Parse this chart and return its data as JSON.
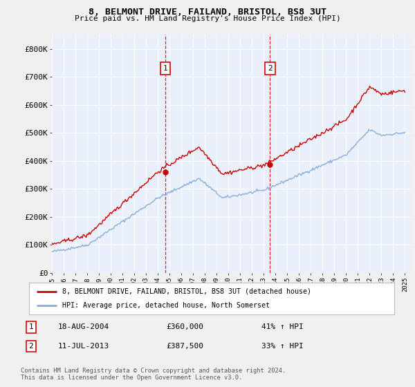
{
  "title": "8, BELMONT DRIVE, FAILAND, BRISTOL, BS8 3UT",
  "subtitle": "Price paid vs. HM Land Registry's House Price Index (HPI)",
  "fig_bg_color": "#f0f0f0",
  "plot_bg_color": "#eaf0fb",
  "ylim": [
    0,
    850000
  ],
  "yticks": [
    0,
    100000,
    200000,
    300000,
    400000,
    500000,
    600000,
    700000,
    800000
  ],
  "ytick_labels": [
    "£0",
    "£100K",
    "£200K",
    "£300K",
    "£400K",
    "£500K",
    "£600K",
    "£700K",
    "£800K"
  ],
  "xticks": [
    1995,
    1996,
    1997,
    1998,
    1999,
    2000,
    2001,
    2002,
    2003,
    2004,
    2005,
    2006,
    2007,
    2008,
    2009,
    2010,
    2011,
    2012,
    2013,
    2014,
    2015,
    2016,
    2017,
    2018,
    2019,
    2020,
    2021,
    2022,
    2023,
    2024,
    2025
  ],
  "sale1_x": 2004.63,
  "sale1_y": 360000,
  "sale1_label": "1",
  "sale2_x": 2013.53,
  "sale2_y": 387500,
  "sale2_label": "2",
  "legend_line1": "8, BELMONT DRIVE, FAILAND, BRISTOL, BS8 3UT (detached house)",
  "legend_line2": "HPI: Average price, detached house, North Somerset",
  "table_row1": [
    "1",
    "18-AUG-2004",
    "£360,000",
    "41% ↑ HPI"
  ],
  "table_row2": [
    "2",
    "11-JUL-2013",
    "£387,500",
    "33% ↑ HPI"
  ],
  "footer": "Contains HM Land Registry data © Crown copyright and database right 2024.\nThis data is licensed under the Open Government Licence v3.0.",
  "red_color": "#cc0000",
  "blue_color": "#88aedd",
  "dashed_red": "#dd0000",
  "grid_color": "#d8d8d8"
}
